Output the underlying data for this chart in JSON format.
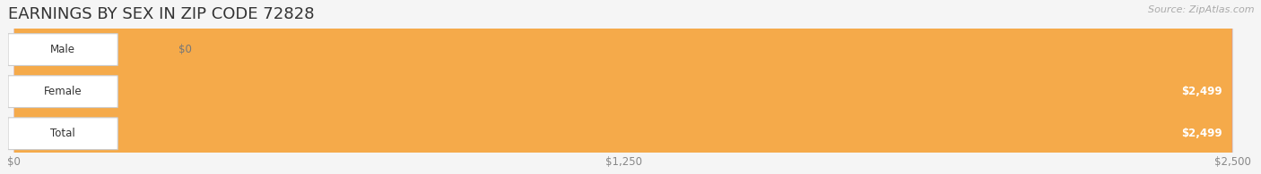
{
  "title": "EARNINGS BY SEX IN ZIP CODE 72828",
  "source": "Source: ZipAtlas.com",
  "categories": [
    "Male",
    "Female",
    "Total"
  ],
  "values": [
    0,
    2499,
    2499
  ],
  "max_value": 2500,
  "bar_colors": [
    "#a8c4e0",
    "#f0608a",
    "#f5aa4a"
  ],
  "tick_labels": [
    "$0",
    "$1,250",
    "$2,500"
  ],
  "tick_values": [
    0,
    1250,
    2500
  ],
  "value_labels": [
    "$0",
    "$2,499",
    "$2,499"
  ],
  "background_color": "#f5f5f5",
  "bar_bg_color": "#e2e2e2",
  "title_fontsize": 13,
  "bar_height": 0.38,
  "source_fontsize": 8
}
